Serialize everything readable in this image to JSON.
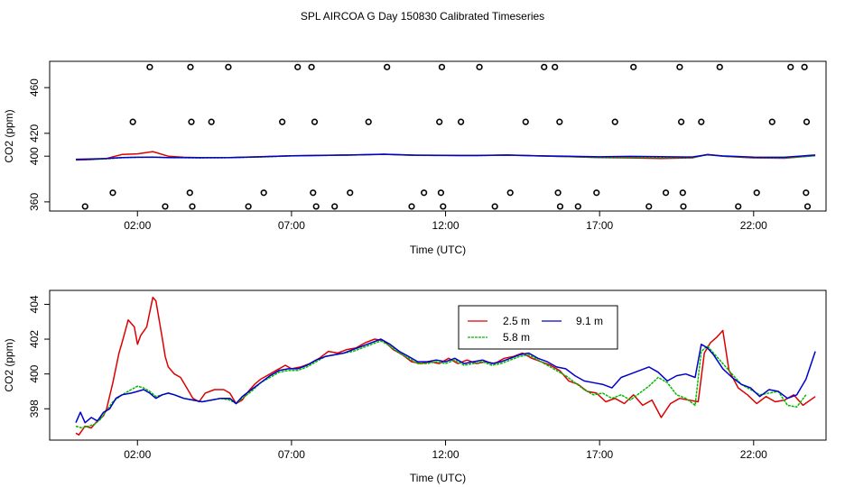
{
  "title": "SPL AIRCOA G  Day 150830  Calibrated Timeseries",
  "chart_data": [
    {
      "type": "line+scatter",
      "title": "SPL AIRCOA G  Day 150830  Calibrated Timeseries",
      "xlabel": "Time (UTC)",
      "ylabel": "CO2 (ppm)",
      "xlim": [
        -0.85,
        24.35
      ],
      "ylim": [
        352,
        483
      ],
      "x_ticks": [
        2,
        7,
        12,
        17,
        22
      ],
      "x_tick_labels": [
        "02:00",
        "07:00",
        "12:00",
        "17:00",
        "22:00"
      ],
      "y_ticks": [
        360,
        400,
        420,
        460
      ],
      "y_tick_labels": [
        "360",
        "400",
        "420",
        "460"
      ],
      "flag_points": {
        "name": "flags",
        "x": [
          0.3,
          1.2,
          1.85,
          2.4,
          2.9,
          3.7,
          3.72,
          3.75,
          3.78,
          4.4,
          4.95,
          5.6,
          6.1,
          6.7,
          7.2,
          7.65,
          7.7,
          7.75,
          7.8,
          8.4,
          8.9,
          9.5,
          10.1,
          10.9,
          11.3,
          11.8,
          11.85,
          11.88,
          11.92,
          12.5,
          13.1,
          13.6,
          14.1,
          14.6,
          15.2,
          15.55,
          15.65,
          15.7,
          15.72,
          16.3,
          16.9,
          17.5,
          18.1,
          18.6,
          19.15,
          19.6,
          19.65,
          19.7,
          19.72,
          20.3,
          20.9,
          21.5,
          22.1,
          22.6,
          23.2,
          23.65,
          23.7,
          23.72,
          23.75
        ],
        "y": [
          356,
          368,
          430,
          478,
          356,
          368,
          478,
          430,
          356,
          430,
          478,
          356,
          368,
          430,
          478,
          478,
          368,
          430,
          356,
          356,
          368,
          430,
          478,
          356,
          368,
          430,
          368,
          478,
          356,
          430,
          478,
          356,
          368,
          430,
          478,
          478,
          368,
          430,
          356,
          356,
          368,
          430,
          478,
          356,
          368,
          478,
          430,
          368,
          356,
          430,
          478,
          356,
          368,
          430,
          478,
          478,
          368,
          430,
          356
        ]
      },
      "series": [
        {
          "name": "2.5 m",
          "color": "#dd0000",
          "x": [
            0.0,
            0.5,
            1.0,
            1.5,
            2.0,
            2.5,
            3.0,
            3.5,
            4.0,
            5.0,
            6.0,
            7.0,
            8.0,
            9.0,
            10.0,
            11.0,
            12.0,
            13.0,
            14.0,
            15.0,
            16.0,
            17.0,
            18.0,
            19.0,
            20.0,
            20.5,
            21.0,
            22.0,
            23.0,
            24.0
          ],
          "values": [
            396.6,
            397.0,
            398.0,
            401.5,
            402.0,
            404.0,
            400.0,
            399.0,
            398.7,
            398.8,
            399.5,
            400.3,
            400.6,
            401.0,
            401.6,
            400.8,
            400.6,
            400.5,
            400.9,
            400.2,
            399.6,
            398.8,
            398.5,
            398.0,
            398.5,
            401.5,
            400.0,
            398.5,
            398.2,
            400.5
          ]
        },
        {
          "name": "5.8 m",
          "color": "#00bb00",
          "x": [
            0.0,
            0.5,
            1.0,
            1.5,
            2.0,
            2.5,
            3.0,
            3.5,
            4.0,
            5.0,
            6.0,
            7.0,
            8.0,
            9.0,
            10.0,
            11.0,
            12.0,
            13.0,
            14.0,
            15.0,
            16.0,
            17.0,
            18.0,
            19.0,
            20.0,
            20.5,
            21.0,
            22.0,
            23.0,
            24.0
          ],
          "values": [
            397.0,
            397.2,
            397.7,
            398.6,
            399.0,
            399.2,
            398.7,
            398.6,
            398.5,
            398.6,
            399.3,
            400.2,
            400.6,
            401.0,
            401.6,
            400.8,
            400.6,
            400.5,
            400.9,
            400.2,
            399.6,
            398.9,
            398.9,
            398.8,
            398.7,
            401.2,
            400.0,
            398.8,
            398.5,
            400.3
          ]
        },
        {
          "name": "9.1 m",
          "color": "#0000cc",
          "x": [
            0.0,
            0.5,
            1.0,
            1.5,
            2.0,
            2.5,
            3.0,
            3.5,
            4.0,
            5.0,
            6.0,
            7.0,
            8.0,
            9.0,
            10.0,
            11.0,
            12.0,
            13.0,
            14.0,
            15.0,
            16.0,
            17.0,
            18.0,
            19.0,
            20.0,
            20.5,
            21.0,
            22.0,
            23.0,
            24.0
          ],
          "values": [
            397.3,
            397.5,
            398.0,
            398.8,
            399.0,
            399.1,
            398.8,
            398.7,
            398.6,
            398.7,
            399.4,
            400.3,
            400.7,
            401.1,
            401.7,
            400.9,
            400.7,
            400.6,
            401.0,
            400.4,
            399.9,
            399.4,
            399.8,
            399.5,
            399.3,
            401.3,
            400.2,
            399.2,
            399.0,
            401.0
          ]
        }
      ]
    },
    {
      "type": "line",
      "title": "",
      "xlabel": "Time (UTC)",
      "ylabel": "CO2 (ppm)",
      "xlim": [
        -0.85,
        24.35
      ],
      "ylim": [
        396.2,
        404.8
      ],
      "x_ticks": [
        2,
        7,
        12,
        17,
        22
      ],
      "x_tick_labels": [
        "02:00",
        "07:00",
        "12:00",
        "17:00",
        "22:00"
      ],
      "y_ticks": [
        398,
        400,
        402,
        404
      ],
      "y_tick_labels": [
        "398",
        "400",
        "402",
        "404"
      ],
      "legend": {
        "position": "top-center",
        "entries": [
          "2.5 m",
          "5.8 m",
          "9.1 m"
        ]
      },
      "series": [
        {
          "name": "2.5 m",
          "color": "#dd0000",
          "x": [
            0.0,
            0.1,
            0.3,
            0.5,
            0.7,
            0.9,
            1.0,
            1.2,
            1.4,
            1.5,
            1.7,
            1.9,
            2.0,
            2.1,
            2.3,
            2.5,
            2.6,
            2.8,
            2.9,
            3.0,
            3.2,
            3.4,
            3.6,
            3.8,
            4.0,
            4.2,
            4.5,
            4.8,
            5.0,
            5.2,
            5.4,
            5.6,
            5.8,
            6.0,
            6.2,
            6.5,
            6.8,
            7.0,
            7.3,
            7.6,
            7.9,
            8.2,
            8.5,
            8.8,
            9.1,
            9.4,
            9.7,
            10.0,
            10.3,
            10.6,
            10.9,
            11.2,
            11.5,
            11.8,
            12.1,
            12.4,
            12.7,
            13.0,
            13.3,
            13.6,
            13.9,
            14.2,
            14.5,
            14.8,
            15.1,
            15.4,
            15.7,
            16.0,
            16.3,
            16.6,
            16.9,
            17.2,
            17.5,
            17.8,
            18.1,
            18.4,
            18.7,
            19.0,
            19.3,
            19.6,
            19.9,
            20.2,
            20.4,
            20.6,
            20.8,
            21.0,
            21.2,
            21.5,
            21.8,
            22.1,
            22.4,
            22.7,
            23.0,
            23.3,
            23.6,
            24.0
          ],
          "values": [
            396.6,
            396.5,
            397.0,
            396.9,
            397.3,
            397.6,
            398.0,
            399.5,
            401.2,
            401.8,
            403.1,
            402.7,
            401.7,
            402.2,
            402.7,
            404.4,
            404.2,
            402.1,
            401.0,
            400.4,
            400.0,
            399.8,
            399.2,
            398.6,
            398.4,
            398.9,
            399.1,
            399.1,
            398.9,
            398.3,
            398.5,
            399.0,
            399.4,
            399.7,
            399.9,
            400.2,
            400.5,
            400.3,
            400.4,
            400.6,
            400.9,
            401.3,
            401.2,
            401.4,
            401.5,
            401.8,
            402.0,
            401.9,
            401.4,
            401.1,
            400.7,
            400.6,
            400.7,
            400.6,
            400.9,
            400.6,
            400.8,
            400.6,
            400.7,
            400.6,
            400.9,
            401.0,
            401.2,
            400.9,
            400.7,
            400.5,
            400.2,
            399.6,
            399.4,
            399.0,
            398.9,
            398.4,
            398.6,
            398.3,
            398.8,
            398.2,
            398.5,
            397.5,
            398.3,
            398.6,
            398.5,
            398.4,
            401.2,
            401.8,
            402.1,
            402.5,
            400.2,
            399.2,
            398.8,
            398.3,
            398.7,
            398.4,
            398.5,
            398.8,
            398.2,
            398.7
          ]
        },
        {
          "name": "5.8 m",
          "color": "#00bb00",
          "x": [
            0.0,
            0.2,
            0.4,
            0.6,
            0.8,
            1.0,
            1.2,
            1.5,
            1.8,
            2.0,
            2.2,
            2.4,
            2.6,
            2.8,
            3.0,
            3.2,
            3.5,
            3.8,
            4.1,
            4.4,
            4.7,
            5.0,
            5.2,
            5.4,
            5.7,
            6.0,
            6.3,
            6.6,
            6.9,
            7.2,
            7.5,
            7.8,
            8.1,
            8.4,
            8.7,
            9.0,
            9.3,
            9.6,
            9.9,
            10.2,
            10.5,
            10.8,
            11.1,
            11.4,
            11.7,
            12.0,
            12.3,
            12.6,
            12.9,
            13.2,
            13.5,
            13.8,
            14.1,
            14.4,
            14.7,
            15.0,
            15.3,
            15.6,
            15.9,
            16.2,
            16.5,
            16.8,
            17.1,
            17.4,
            17.7,
            18.0,
            18.3,
            18.6,
            18.9,
            19.2,
            19.5,
            19.8,
            20.1,
            20.3,
            20.5,
            20.7,
            21.0,
            21.3,
            21.6,
            21.9,
            22.2,
            22.5,
            22.8,
            23.1,
            23.4,
            23.7
          ],
          "values": [
            397.0,
            396.9,
            397.0,
            397.1,
            397.4,
            397.9,
            398.4,
            398.8,
            399.1,
            399.3,
            399.2,
            399.0,
            398.7,
            398.8,
            398.9,
            398.8,
            398.6,
            398.5,
            398.4,
            398.5,
            398.6,
            398.5,
            398.3,
            398.6,
            399.0,
            399.5,
            399.8,
            400.1,
            400.2,
            400.2,
            400.4,
            400.7,
            401.0,
            401.1,
            401.2,
            401.3,
            401.5,
            401.7,
            401.9,
            401.6,
            401.2,
            400.9,
            400.6,
            400.6,
            400.7,
            400.6,
            400.8,
            400.5,
            400.6,
            400.7,
            400.5,
            400.6,
            400.8,
            401.0,
            401.1,
            400.8,
            400.5,
            400.2,
            399.9,
            399.5,
            399.1,
            398.8,
            398.9,
            398.6,
            398.8,
            398.5,
            398.9,
            399.3,
            399.8,
            399.5,
            398.8,
            398.6,
            398.2,
            401.3,
            401.6,
            401.2,
            400.6,
            400.0,
            399.4,
            399.1,
            398.8,
            398.9,
            399.0,
            398.2,
            398.1,
            398.8
          ]
        },
        {
          "name": "9.1 m",
          "color": "#0000cc",
          "x": [
            0.0,
            0.15,
            0.3,
            0.5,
            0.7,
            0.9,
            1.1,
            1.3,
            1.5,
            1.8,
            2.0,
            2.2,
            2.4,
            2.6,
            2.8,
            3.0,
            3.2,
            3.5,
            3.8,
            4.1,
            4.4,
            4.7,
            5.0,
            5.2,
            5.4,
            5.7,
            6.0,
            6.3,
            6.6,
            6.9,
            7.2,
            7.5,
            7.8,
            8.1,
            8.4,
            8.7,
            9.0,
            9.3,
            9.6,
            9.9,
            10.2,
            10.5,
            10.8,
            11.1,
            11.4,
            11.7,
            12.0,
            12.3,
            12.6,
            12.9,
            13.2,
            13.5,
            13.8,
            14.1,
            14.4,
            14.7,
            15.0,
            15.3,
            15.6,
            15.9,
            16.2,
            16.5,
            16.8,
            17.1,
            17.4,
            17.7,
            18.0,
            18.3,
            18.6,
            18.9,
            19.2,
            19.5,
            19.8,
            20.1,
            20.3,
            20.5,
            20.7,
            21.0,
            21.3,
            21.6,
            21.9,
            22.2,
            22.5,
            22.8,
            23.1,
            23.4,
            23.7,
            24.0
          ],
          "values": [
            397.2,
            397.8,
            397.2,
            397.5,
            397.3,
            397.8,
            398.0,
            398.6,
            398.8,
            398.9,
            399.0,
            399.1,
            398.9,
            398.6,
            398.8,
            398.9,
            398.8,
            398.6,
            398.5,
            398.4,
            398.5,
            398.6,
            398.6,
            398.3,
            398.7,
            399.1,
            399.5,
            399.9,
            400.2,
            400.3,
            400.3,
            400.5,
            400.8,
            401.0,
            401.1,
            401.2,
            401.4,
            401.6,
            401.8,
            402.0,
            401.7,
            401.3,
            401.0,
            400.7,
            400.7,
            400.8,
            400.7,
            400.9,
            400.6,
            400.7,
            400.8,
            400.6,
            400.7,
            400.9,
            401.1,
            401.2,
            400.9,
            400.7,
            400.4,
            400.3,
            399.9,
            399.6,
            399.5,
            399.4,
            399.2,
            399.8,
            400.0,
            400.2,
            400.4,
            400.1,
            399.6,
            399.9,
            400.0,
            399.8,
            401.7,
            401.5,
            401.1,
            400.3,
            399.8,
            399.4,
            399.2,
            398.7,
            399.1,
            399.0,
            398.6,
            398.8,
            399.7,
            401.3
          ]
        }
      ]
    }
  ]
}
